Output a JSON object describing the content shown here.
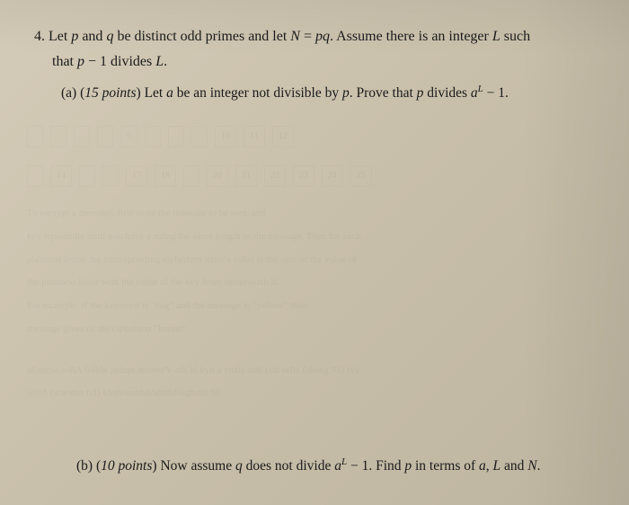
{
  "problem": {
    "number": "4.",
    "text_line1": "Let ",
    "var_p": "p",
    "text_and1": " and ",
    "var_q": "q",
    "text_distinct": " be distinct odd primes and let ",
    "var_N": "N",
    "text_eq": " = ",
    "var_pq": "pq",
    "text_assume": ". Assume there is an integer ",
    "var_L": "L",
    "text_such": " such",
    "text_line2_that": "that ",
    "var_p2": "p",
    "text_minus1": " − 1 divides ",
    "var_L2": "L",
    "text_period": "."
  },
  "subpart_a": {
    "label": "(a)",
    "points_open": " (",
    "points_text": "15 points",
    "points_close": ") ",
    "text1": "Let ",
    "var_a": "a",
    "text2": " be an integer not divisible by ",
    "var_p": "p",
    "text3": ". Prove that ",
    "var_p2": "p",
    "text4": " divides ",
    "var_a2": "a",
    "exp_L": "L",
    "text5": " − 1."
  },
  "subpart_b": {
    "label": "(b)",
    "points_open": " (",
    "points_text": "10 points",
    "points_close": ") ",
    "text1": "Now assume ",
    "var_q": "q",
    "text2": " does not divide ",
    "var_a": "a",
    "exp_L": "L",
    "text3": " − 1. Find ",
    "var_p": "p",
    "text4": " in terms of ",
    "var_a2": "a",
    "text5": ", ",
    "var_L2": "L",
    "text6": " and ",
    "var_N": "N",
    "text7": "."
  },
  "faded": {
    "cells": [
      "",
      "",
      "",
      "",
      "6",
      "",
      "",
      "",
      "10",
      "11",
      "12"
    ],
    "cells2": [
      "",
      "14",
      "",
      "",
      "17",
      "18",
      "",
      "20",
      "21",
      "22",
      "23",
      "24",
      "25"
    ],
    "line1": "To encrypt a message, first write the message to be sent, and",
    "line2": "key repeatedly until you have a string the same length as the message. Then for each",
    "line3": "plaintext letter, the corresponding ciphertext letter's value is the sum of the value of",
    "line4": "the plaintext letter with the value of the key letter underneath it.",
    "line5": "For example, if the keyword is \"dog\" and the message is \"yellow\" then",
    "line6": "message gives us the ciphertext \"lemon\"",
    "line7": "of some sollA foible ;nduin miovo/V adt id kyd a vnais doll (sal sella (sheng 91) (v)",
    "line8": "sollA (aiw dus tul) Unfwennful/shield-ugh-all/98"
  },
  "style": {
    "background_start": "#d4cbb8",
    "background_end": "#beb5a0",
    "text_color": "#1a1a1a",
    "main_fontsize": 16,
    "sub_fontsize": 15.5,
    "faded_opacity": 0.08
  }
}
